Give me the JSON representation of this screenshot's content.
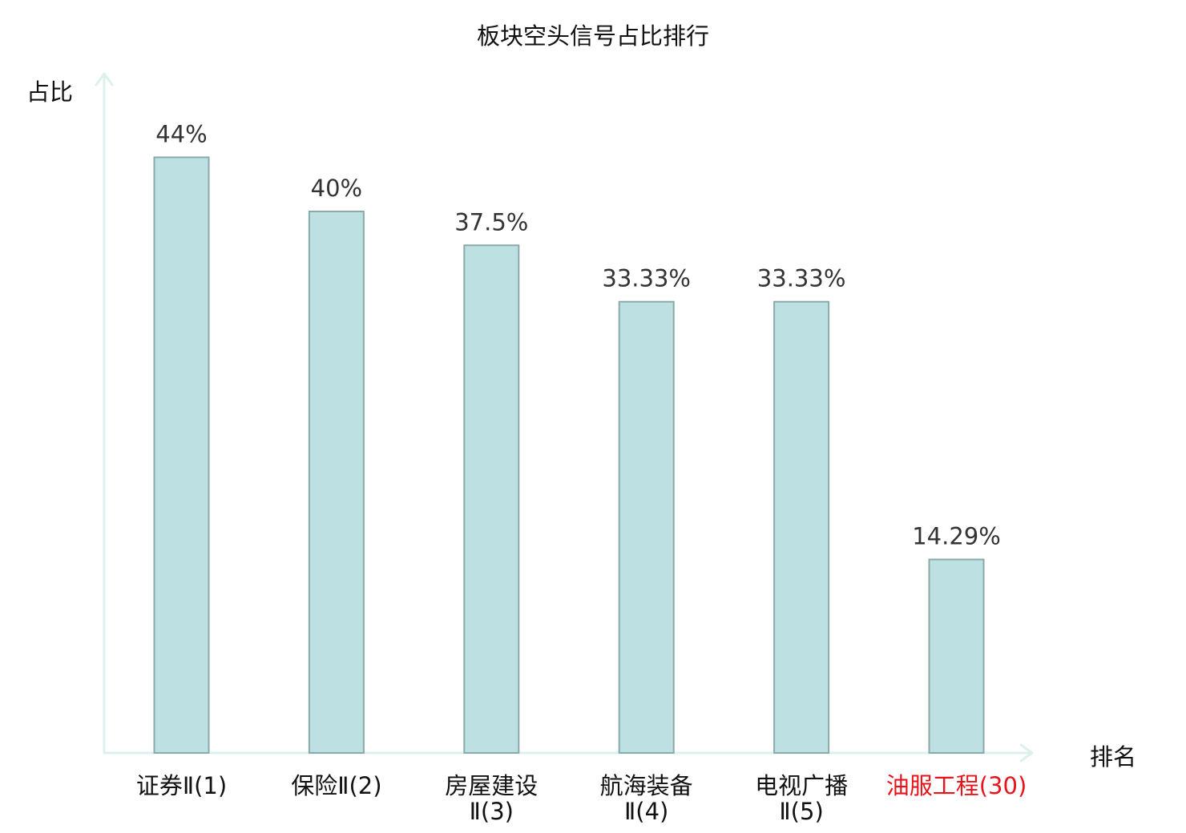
{
  "chart_data": {
    "type": "bar",
    "title": "板块空头信号占比排行",
    "ylabel": "占比",
    "xlabel": "排名",
    "ylim": [
      0,
      50
    ],
    "grid": false,
    "legend": "none",
    "categories": [
      {
        "line1": "证券Ⅱ(1)",
        "line2": "",
        "highlight": false
      },
      {
        "line1": "保险Ⅱ(2)",
        "line2": "",
        "highlight": false
      },
      {
        "line1": "房屋建设",
        "line2": "Ⅱ(3)",
        "highlight": false
      },
      {
        "line1": "航海装备",
        "line2": "Ⅱ(4)",
        "highlight": false
      },
      {
        "line1": "电视广播",
        "line2": "Ⅱ(5)",
        "highlight": false
      },
      {
        "line1": "油服工程(30)",
        "line2": "",
        "highlight": true
      }
    ],
    "values": [
      44,
      40,
      37.5,
      33.33,
      33.33,
      14.29
    ],
    "data_labels": [
      "44%",
      "40%",
      "37.5%",
      "33.33%",
      "33.33%",
      "14.29%"
    ],
    "colors": {
      "bar_fill": "#bde0e3",
      "bar_stroke": "#8aaaa9",
      "axis": "#ddf0ee",
      "label_text": "#333333",
      "highlight_text": "#e8141c"
    }
  }
}
